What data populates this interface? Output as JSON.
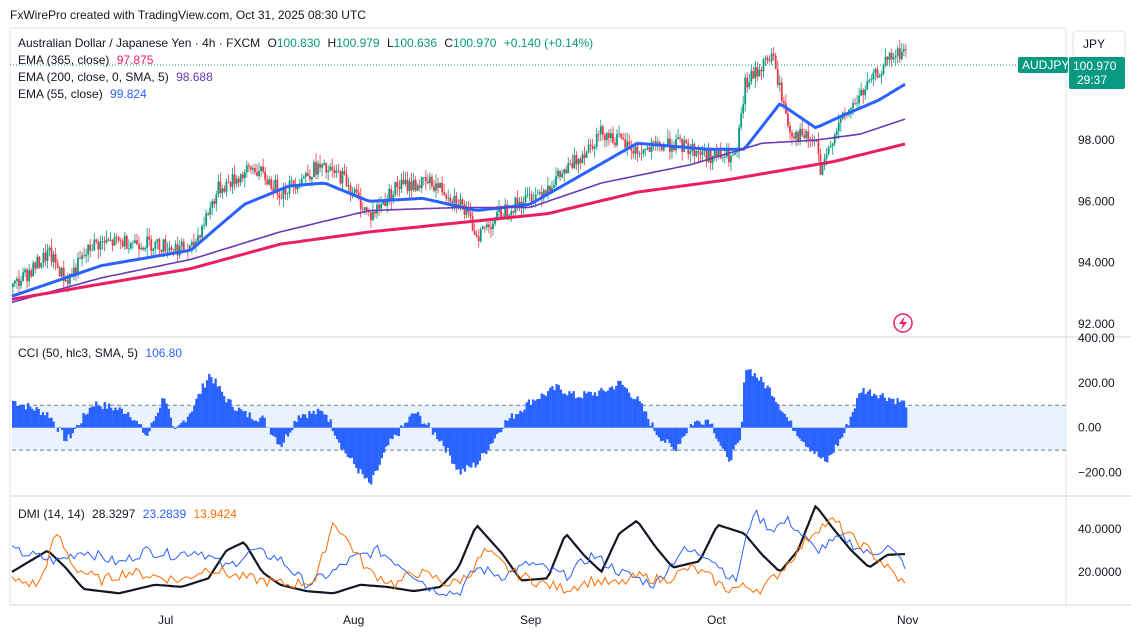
{
  "header": {
    "credit": "FxWirePro created with TradingView.com, Oct 31, 2025 08:30 UTC",
    "currency_button": "JPY"
  },
  "main": {
    "title": "Australian Dollar / Japanese Yen · 4h · FXCM",
    "o_label": "O",
    "o_value": "100.830",
    "h_label": "H",
    "h_value": "100.979",
    "l_label": "L",
    "l_value": "100.636",
    "c_label": "C",
    "c_value": "100.970",
    "change": "+0.140 (+0.14%)",
    "indicators": [
      {
        "label": "EMA (365, close)",
        "value": "97.875",
        "color": "#e91e63"
      },
      {
        "label": "EMA (200, close, 0, SMA, 5)",
        "value": "98.688",
        "color": "#673ab7"
      },
      {
        "label": "EMA (55, close)",
        "value": "99.824",
        "color": "#2962ff"
      }
    ],
    "symbol_tag": "AUDJPY",
    "price_tag": "100.970",
    "countdown": "29:37"
  },
  "cci_pane": {
    "label": "CCI (50, hlc3, SMA, 5)",
    "value": "106.80"
  },
  "dmi_pane": {
    "label": "DMI (14, 14)",
    "values": [
      {
        "value": "28.3297",
        "color": "#131722"
      },
      {
        "value": "23.2839",
        "color": "#2962ff"
      },
      {
        "value": "13.9424",
        "color": "#ff6d00"
      }
    ]
  },
  "x_axis": [
    "Jul",
    "Aug",
    "Sep",
    "Oct",
    "Nov"
  ],
  "chart_data": [
    {
      "type": "candlestick",
      "title": "Australian Dollar / Japanese Yen · 4h · FXCM",
      "ylim": [
        91.6,
        101.6
      ],
      "y_ticks": [
        "100.000",
        "98.000",
        "96.000",
        "94.000",
        "92.000"
      ],
      "x_ticks": [
        "Jul",
        "Aug",
        "Sep",
        "Oct",
        "Nov"
      ],
      "last_close": 100.97,
      "close_anchors": [
        {
          "t": 0.0,
          "v": 93.2
        },
        {
          "t": 0.04,
          "v": 94.3
        },
        {
          "t": 0.06,
          "v": 93.4
        },
        {
          "t": 0.09,
          "v": 94.6
        },
        {
          "t": 0.13,
          "v": 94.7
        },
        {
          "t": 0.16,
          "v": 94.6
        },
        {
          "t": 0.2,
          "v": 94.4
        },
        {
          "t": 0.23,
          "v": 96.4
        },
        {
          "t": 0.27,
          "v": 97.1
        },
        {
          "t": 0.3,
          "v": 96.3
        },
        {
          "t": 0.34,
          "v": 97.1
        },
        {
          "t": 0.37,
          "v": 96.8
        },
        {
          "t": 0.4,
          "v": 95.5
        },
        {
          "t": 0.43,
          "v": 96.5
        },
        {
          "t": 0.47,
          "v": 96.6
        },
        {
          "t": 0.5,
          "v": 96.0
        },
        {
          "t": 0.52,
          "v": 94.9
        },
        {
          "t": 0.55,
          "v": 95.7
        },
        {
          "t": 0.59,
          "v": 96.3
        },
        {
          "t": 0.62,
          "v": 97.0
        },
        {
          "t": 0.66,
          "v": 98.3
        },
        {
          "t": 0.7,
          "v": 97.6
        },
        {
          "t": 0.74,
          "v": 97.9
        },
        {
          "t": 0.78,
          "v": 97.5
        },
        {
          "t": 0.81,
          "v": 97.4
        },
        {
          "t": 0.82,
          "v": 99.8
        },
        {
          "t": 0.85,
          "v": 100.8
        },
        {
          "t": 0.87,
          "v": 98.3
        },
        {
          "t": 0.9,
          "v": 97.9
        },
        {
          "t": 0.905,
          "v": 96.8
        },
        {
          "t": 0.92,
          "v": 98.3
        },
        {
          "t": 0.95,
          "v": 99.5
        },
        {
          "t": 0.98,
          "v": 100.6
        },
        {
          "t": 1.0,
          "v": 100.97
        }
      ],
      "series": [
        {
          "name": "EMA (55, close)",
          "color": "#2962ff",
          "points": [
            [
              0.0,
              92.9
            ],
            [
              0.1,
              93.9
            ],
            [
              0.2,
              94.4
            ],
            [
              0.26,
              95.9
            ],
            [
              0.31,
              96.5
            ],
            [
              0.35,
              96.6
            ],
            [
              0.4,
              96.0
            ],
            [
              0.46,
              96.1
            ],
            [
              0.52,
              95.7
            ],
            [
              0.58,
              95.9
            ],
            [
              0.64,
              96.9
            ],
            [
              0.7,
              97.9
            ],
            [
              0.78,
              97.7
            ],
            [
              0.82,
              97.7
            ],
            [
              0.86,
              99.2
            ],
            [
              0.9,
              98.4
            ],
            [
              0.93,
              98.8
            ],
            [
              0.97,
              99.3
            ],
            [
              1.0,
              99.824
            ]
          ]
        },
        {
          "name": "EMA (200, close, 0, SMA, 5)",
          "color": "#673ab7",
          "points": [
            [
              0.0,
              92.7
            ],
            [
              0.1,
              93.5
            ],
            [
              0.2,
              94.1
            ],
            [
              0.3,
              95.0
            ],
            [
              0.4,
              95.7
            ],
            [
              0.5,
              95.8
            ],
            [
              0.58,
              95.8
            ],
            [
              0.66,
              96.6
            ],
            [
              0.76,
              97.2
            ],
            [
              0.84,
              97.9
            ],
            [
              0.9,
              98.0
            ],
            [
              0.95,
              98.2
            ],
            [
              1.0,
              98.688
            ]
          ]
        },
        {
          "name": "EMA (365, close)",
          "color": "#e91e63",
          "points": [
            [
              0.0,
              92.8
            ],
            [
              0.1,
              93.3
            ],
            [
              0.2,
              93.8
            ],
            [
              0.3,
              94.6
            ],
            [
              0.4,
              95.0
            ],
            [
              0.5,
              95.3
            ],
            [
              0.6,
              95.6
            ],
            [
              0.7,
              96.3
            ],
            [
              0.8,
              96.7
            ],
            [
              0.86,
              97.0
            ],
            [
              0.92,
              97.3
            ],
            [
              1.0,
              97.875
            ]
          ]
        }
      ]
    },
    {
      "type": "area",
      "title": "CCI (50, hlc3, SMA, 5)",
      "ylim": [
        -300,
        400
      ],
      "y_ticks": [
        "400.00",
        "200.00",
        "0.00",
        "−200.00"
      ],
      "bands": [
        100,
        -100
      ],
      "last_value": 106.8,
      "anchors": [
        {
          "t": 0.0,
          "v": 120
        },
        {
          "t": 0.04,
          "v": 60
        },
        {
          "t": 0.06,
          "v": -60
        },
        {
          "t": 0.09,
          "v": 110
        },
        {
          "t": 0.13,
          "v": 70
        },
        {
          "t": 0.15,
          "v": -40
        },
        {
          "t": 0.17,
          "v": 150
        },
        {
          "t": 0.18,
          "v": -30
        },
        {
          "t": 0.2,
          "v": 80
        },
        {
          "t": 0.22,
          "v": 240
        },
        {
          "t": 0.24,
          "v": 120
        },
        {
          "t": 0.26,
          "v": 60
        },
        {
          "t": 0.28,
          "v": 40
        },
        {
          "t": 0.3,
          "v": -80
        },
        {
          "t": 0.32,
          "v": 60
        },
        {
          "t": 0.35,
          "v": 70
        },
        {
          "t": 0.37,
          "v": -100
        },
        {
          "t": 0.4,
          "v": -260
        },
        {
          "t": 0.42,
          "v": -80
        },
        {
          "t": 0.45,
          "v": 70
        },
        {
          "t": 0.48,
          "v": -60
        },
        {
          "t": 0.5,
          "v": -200
        },
        {
          "t": 0.52,
          "v": -160
        },
        {
          "t": 0.55,
          "v": 20
        },
        {
          "t": 0.58,
          "v": 120
        },
        {
          "t": 0.61,
          "v": 180
        },
        {
          "t": 0.63,
          "v": 140
        },
        {
          "t": 0.66,
          "v": 160
        },
        {
          "t": 0.68,
          "v": 200
        },
        {
          "t": 0.7,
          "v": 120
        },
        {
          "t": 0.72,
          "v": -20
        },
        {
          "t": 0.74,
          "v": -100
        },
        {
          "t": 0.76,
          "v": 20
        },
        {
          "t": 0.78,
          "v": 40
        },
        {
          "t": 0.8,
          "v": -150
        },
        {
          "t": 0.815,
          "v": -60
        },
        {
          "t": 0.82,
          "v": 280
        },
        {
          "t": 0.85,
          "v": 160
        },
        {
          "t": 0.87,
          "v": 20
        },
        {
          "t": 0.89,
          "v": -80
        },
        {
          "t": 0.91,
          "v": -160
        },
        {
          "t": 0.93,
          "v": -30
        },
        {
          "t": 0.95,
          "v": 170
        },
        {
          "t": 0.97,
          "v": 150
        },
        {
          "t": 1.0,
          "v": 106.8
        }
      ]
    },
    {
      "type": "line",
      "title": "DMI (14, 14)",
      "ylim": [
        5,
        55
      ],
      "y_ticks": [
        "40.0000",
        "20.0000"
      ],
      "series": [
        {
          "name": "",
          "color": "#131722",
          "points": [
            [
              0.0,
              20
            ],
            [
              0.04,
              30
            ],
            [
              0.06,
              22
            ],
            [
              0.08,
              12
            ],
            [
              0.12,
              10
            ],
            [
              0.16,
              14
            ],
            [
              0.19,
              13
            ],
            [
              0.22,
              17
            ],
            [
              0.24,
              30
            ],
            [
              0.26,
              34
            ],
            [
              0.28,
              20
            ],
            [
              0.3,
              14
            ],
            [
              0.33,
              11
            ],
            [
              0.36,
              10
            ],
            [
              0.39,
              14
            ],
            [
              0.42,
              13
            ],
            [
              0.45,
              11
            ],
            [
              0.48,
              13
            ],
            [
              0.5,
              22
            ],
            [
              0.52,
              42
            ],
            [
              0.55,
              28
            ],
            [
              0.57,
              16
            ],
            [
              0.6,
              17
            ],
            [
              0.62,
              38
            ],
            [
              0.64,
              28
            ],
            [
              0.66,
              20
            ],
            [
              0.68,
              38
            ],
            [
              0.7,
              44
            ],
            [
              0.72,
              32
            ],
            [
              0.74,
              22
            ],
            [
              0.77,
              25
            ],
            [
              0.79,
              42
            ],
            [
              0.82,
              38
            ],
            [
              0.84,
              28
            ],
            [
              0.86,
              20
            ],
            [
              0.88,
              30
            ],
            [
              0.9,
              51
            ],
            [
              0.92,
              40
            ],
            [
              0.94,
              30
            ],
            [
              0.96,
              22
            ],
            [
              0.98,
              28
            ],
            [
              1.0,
              28.33
            ]
          ]
        },
        {
          "name": "",
          "color": "#2962ff",
          "points": [
            [
              0.0,
              30
            ],
            [
              0.05,
              25
            ],
            [
              0.08,
              30
            ],
            [
              0.12,
              24
            ],
            [
              0.15,
              30
            ],
            [
              0.18,
              28
            ],
            [
              0.21,
              30
            ],
            [
              0.24,
              22
            ],
            [
              0.27,
              30
            ],
            [
              0.3,
              26
            ],
            [
              0.33,
              14
            ],
            [
              0.36,
              20
            ],
            [
              0.38,
              26
            ],
            [
              0.41,
              30
            ],
            [
              0.44,
              22
            ],
            [
              0.47,
              12
            ],
            [
              0.5,
              10
            ],
            [
              0.52,
              22
            ],
            [
              0.55,
              18
            ],
            [
              0.58,
              24
            ],
            [
              0.62,
              18
            ],
            [
              0.65,
              28
            ],
            [
              0.68,
              20
            ],
            [
              0.72,
              14
            ],
            [
              0.75,
              30
            ],
            [
              0.78,
              28
            ],
            [
              0.81,
              15
            ],
            [
              0.83,
              48
            ],
            [
              0.85,
              40
            ],
            [
              0.87,
              44
            ],
            [
              0.9,
              30
            ],
            [
              0.93,
              36
            ],
            [
              0.96,
              28
            ],
            [
              0.98,
              32
            ],
            [
              1.0,
              23.28
            ]
          ]
        },
        {
          "name": "",
          "color": "#ff6d00",
          "points": [
            [
              0.0,
              16
            ],
            [
              0.03,
              14
            ],
            [
              0.05,
              38
            ],
            [
              0.07,
              22
            ],
            [
              0.1,
              16
            ],
            [
              0.13,
              20
            ],
            [
              0.16,
              18
            ],
            [
              0.19,
              16
            ],
            [
              0.22,
              22
            ],
            [
              0.25,
              18
            ],
            [
              0.28,
              16
            ],
            [
              0.31,
              14
            ],
            [
              0.34,
              16
            ],
            [
              0.36,
              44
            ],
            [
              0.38,
              32
            ],
            [
              0.4,
              20
            ],
            [
              0.43,
              14
            ],
            [
              0.45,
              20
            ],
            [
              0.47,
              18
            ],
            [
              0.49,
              14
            ],
            [
              0.51,
              18
            ],
            [
              0.53,
              30
            ],
            [
              0.56,
              20
            ],
            [
              0.59,
              15
            ],
            [
              0.62,
              12
            ],
            [
              0.65,
              16
            ],
            [
              0.68,
              14
            ],
            [
              0.7,
              18
            ],
            [
              0.73,
              16
            ],
            [
              0.76,
              22
            ],
            [
              0.78,
              18
            ],
            [
              0.8,
              12
            ],
            [
              0.82,
              13
            ],
            [
              0.84,
              12
            ],
            [
              0.86,
              20
            ],
            [
              0.88,
              30
            ],
            [
              0.9,
              40
            ],
            [
              0.92,
              44
            ],
            [
              0.94,
              36
            ],
            [
              0.96,
              30
            ],
            [
              0.98,
              22
            ],
            [
              1.0,
              13.94
            ]
          ]
        }
      ]
    }
  ]
}
